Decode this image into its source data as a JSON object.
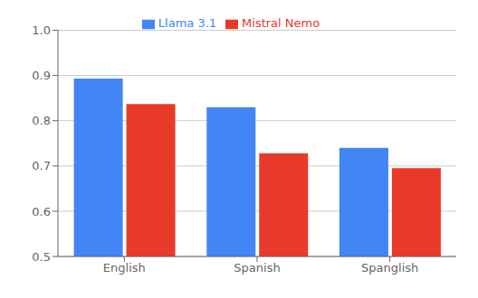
{
  "chart_data": {
    "type": "bar",
    "categories": [
      "English",
      "Spanish",
      "Spanglish"
    ],
    "series": [
      {
        "name": "Llama 3.1",
        "values": [
          0.893,
          0.83,
          0.74
        ],
        "color": "#4285F4"
      },
      {
        "name": "Mistral Nemo",
        "values": [
          0.837,
          0.728,
          0.695
        ],
        "color": "#E8392A"
      }
    ],
    "ylim": [
      0.5,
      1.0
    ],
    "yticks": [
      0.5,
      0.6,
      0.7,
      0.8,
      0.9,
      {
        "value": 1,
        "label": "1.0"
      }
    ],
    "grid": true,
    "legend": "top"
  }
}
